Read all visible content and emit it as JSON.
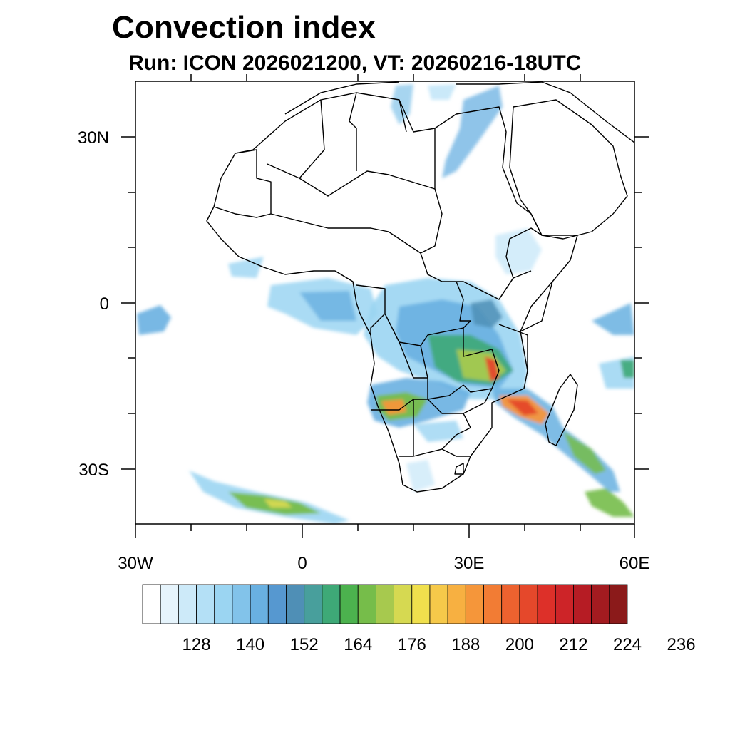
{
  "title": "Convection index",
  "subtitle": "Run: ICON 2026021200,  VT: 20260216-18UTC",
  "map": {
    "region": {
      "lon_range": [
        -30,
        60
      ],
      "lat_range": [
        -40,
        40
      ]
    },
    "y_axis_labels": [
      "30N",
      "0",
      "30S"
    ],
    "x_axis_labels": [
      "30W",
      "0",
      "30E",
      "60E"
    ]
  },
  "colorbar": {
    "tick_labels": [
      "128",
      "140",
      "152",
      "164",
      "176",
      "188",
      "200",
      "212",
      "224",
      "236"
    ],
    "colors": [
      "#ffffff",
      "#e6f4fc",
      "#cdeaf9",
      "#b4e0f6",
      "#9bd5f2",
      "#82c3ea",
      "#69b0e1",
      "#5698d0",
      "#4f8fb6",
      "#489f9c",
      "#3ea977",
      "#4cb24e",
      "#76bd4a",
      "#a7c94e",
      "#d6d951",
      "#f0e04d",
      "#f6c94a",
      "#f7b041",
      "#f5963a",
      "#f27c34",
      "#ed622f",
      "#e5482b",
      "#dd3029",
      "#cd2428",
      "#b61c24",
      "#a31b20",
      "#8b1a1a"
    ]
  }
}
